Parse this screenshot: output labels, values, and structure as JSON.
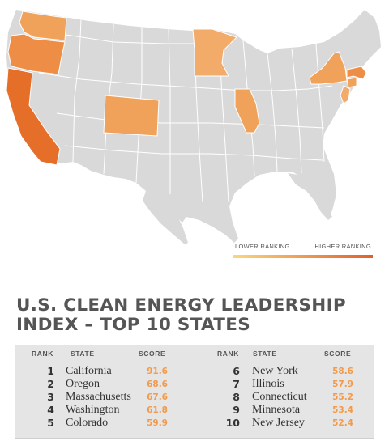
{
  "map": {
    "base_color": "#d9d9d9",
    "border_color": "#ffffff",
    "highlighted_states": [
      {
        "state": "California",
        "rank": 1,
        "color": "#e56f29"
      },
      {
        "state": "Oregon",
        "rank": 2,
        "color": "#ee8d45"
      },
      {
        "state": "Massachusetts",
        "rank": 3,
        "color": "#ee8d45"
      },
      {
        "state": "Washington",
        "rank": 4,
        "color": "#f0a15a"
      },
      {
        "state": "Colorado",
        "rank": 5,
        "color": "#f0a15a"
      },
      {
        "state": "New York",
        "rank": 6,
        "color": "#f0a15a"
      },
      {
        "state": "Illinois",
        "rank": 7,
        "color": "#f0a15a"
      },
      {
        "state": "Connecticut",
        "rank": 8,
        "color": "#f0a15a"
      },
      {
        "state": "Minnesota",
        "rank": 9,
        "color": "#f3ab6a"
      },
      {
        "state": "New Jersey",
        "rank": 10,
        "color": "#f3ab6a"
      }
    ]
  },
  "legend": {
    "low_label": "LOWER RANKING",
    "high_label": "HIGHER RANKING",
    "gradient_start": "#fbd67a",
    "gradient_end": "#e0612a"
  },
  "title": {
    "line1": "U.S. CLEAN ENERGY LEADERSHIP",
    "line2": "INDEX – TOP 10 STATES"
  },
  "table": {
    "headers": {
      "rank": "RANK",
      "state": "STATE",
      "score": "SCORE"
    },
    "left_rows": [
      {
        "rank": "1",
        "state": "California",
        "score": "91.6"
      },
      {
        "rank": "2",
        "state": "Oregon",
        "score": "68.6"
      },
      {
        "rank": "3",
        "state": "Massachusetts",
        "score": "67.6"
      },
      {
        "rank": "4",
        "state": "Washington",
        "score": "61.8"
      },
      {
        "rank": "5",
        "state": "Colorado",
        "score": "59.9"
      }
    ],
    "right_rows": [
      {
        "rank": "6",
        "state": "New York",
        "score": "58.6"
      },
      {
        "rank": "7",
        "state": "Illinois",
        "score": "57.9"
      },
      {
        "rank": "8",
        "state": "Connecticut",
        "score": "55.2"
      },
      {
        "rank": "9",
        "state": "Minnesota",
        "score": "53.4"
      },
      {
        "rank": "10",
        "state": "New Jersey",
        "score": "52.4"
      }
    ]
  }
}
